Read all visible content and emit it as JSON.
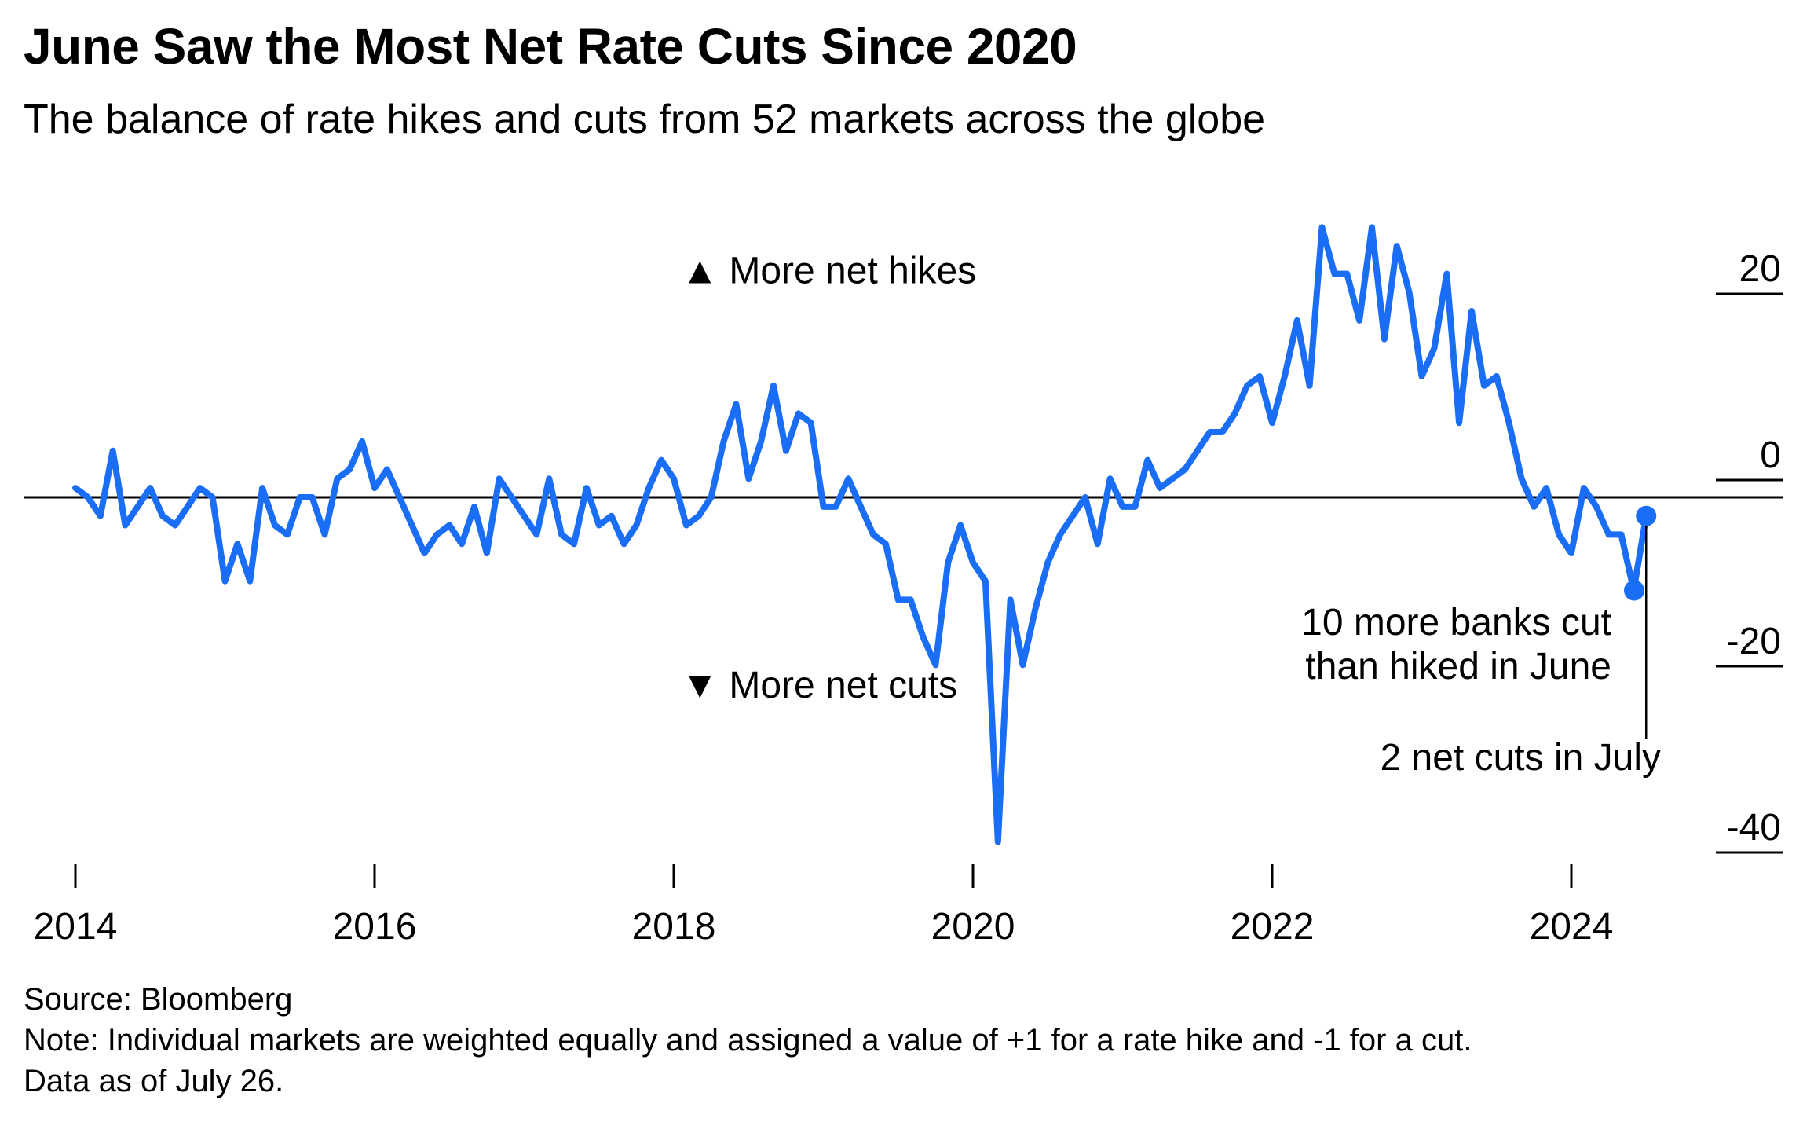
{
  "header": {
    "title": "June Saw the Most Net Rate Cuts Since 2020",
    "subtitle": "The balance of rate hikes and cuts from 52 markets across the globe"
  },
  "footer": {
    "source": "Source: Bloomberg",
    "note": "Note: Individual markets are weighted equally and assigned a value of +1 for a rate hike and -1 for a cut.",
    "data_as_of": "Data as of July 26."
  },
  "colors": {
    "line": "#1a6ef5",
    "axis": "#000000",
    "text": "#000000"
  },
  "chart_data": {
    "type": "line",
    "title": "June Saw the Most Net Rate Cuts Since 2020",
    "subtitle": "The balance of rate hikes and cuts from 52 markets across the globe",
    "xlabel": "",
    "ylabel": "",
    "x_start": 2014.0,
    "x_step_months": 1,
    "xlim": [
      2014,
      2025
    ],
    "ylim": [
      -40,
      25
    ],
    "x_ticks": [
      2014,
      2016,
      2018,
      2020,
      2022,
      2024
    ],
    "x_tick_labels": [
      "2014",
      "2016",
      "2018",
      "2020",
      "2022",
      "2024"
    ],
    "y_ticks": [
      20,
      0,
      -20,
      -40
    ],
    "y_tick_labels": [
      "20",
      "0",
      "-20",
      "-40"
    ],
    "grid": false,
    "zero_line": true,
    "series": [
      {
        "values": [
          1,
          0,
          -2,
          5,
          -3,
          -1,
          1,
          -2,
          -3,
          -1,
          1,
          0,
          -9,
          -5,
          -9,
          1,
          -3,
          -4,
          0,
          0,
          -4,
          2,
          3,
          6,
          1,
          3,
          0,
          -3,
          -6,
          -4,
          -3,
          -5,
          -1,
          -6,
          2,
          0,
          -2,
          -4,
          2,
          -4,
          -5,
          1,
          -3,
          -2,
          -5,
          -3,
          1,
          4,
          2,
          -3,
          -2,
          0,
          6,
          10,
          2,
          6,
          12,
          5,
          9,
          8,
          -1,
          -1,
          2,
          -1,
          -4,
          -5,
          -11,
          -11,
          -15,
          -18,
          -7,
          -3,
          -7,
          -9,
          -37,
          -11,
          -18,
          -12,
          -7,
          -4,
          -2,
          0,
          -5,
          2,
          -1,
          -1,
          4,
          1,
          2,
          3,
          5,
          7,
          7,
          9,
          12,
          13,
          8,
          13,
          19,
          12,
          29,
          24,
          24,
          19,
          29,
          17,
          27,
          22,
          13,
          16,
          24,
          8,
          20,
          12,
          13,
          8,
          2,
          -1,
          1,
          -4,
          -6,
          1,
          -1,
          -4,
          -4,
          -10,
          -2
        ],
        "point_count": 127
      }
    ],
    "annotations": [
      {
        "text": "▲ More net hikes",
        "x": 2018.05,
        "y": 23
      },
      {
        "text": "▼ More net cuts",
        "x": 2018.05,
        "y": -21.5
      },
      {
        "text_lines": [
          "10 more banks cut",
          "than hiked in June"
        ],
        "x": 2024.33,
        "y": -10
      },
      {
        "text": "2 net cuts in July",
        "x": 2024.42,
        "y": -2
      }
    ],
    "highlighted_points": [
      {
        "label": "June 2024",
        "x": 2024.42,
        "y": -10
      },
      {
        "label": "July 2024",
        "x": 2024.5,
        "y": -2
      }
    ]
  }
}
